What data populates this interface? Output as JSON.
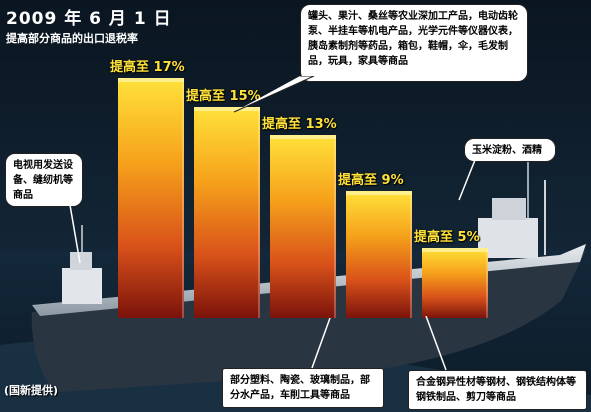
{
  "header": {
    "title": "2009 年 6 月 1 日",
    "subtitle": "提高部分商品的出口退税率"
  },
  "chart_data": {
    "type": "bar",
    "categories": [
      "提高至 17%",
      "提高至 15%",
      "提高至 13%",
      "提高至 9%",
      "提高至 5%"
    ],
    "values": [
      17,
      15,
      13,
      9,
      5
    ],
    "title": "",
    "xlabel": "",
    "ylabel": ""
  },
  "callouts": {
    "top": "罐头、果汁、桑丝等农业深加工产品，电动齿轮泵、半挂车等机电产品，光学元件等仪器仪表，胰岛素制剂等药品，箱包，鞋帽，伞，毛发制品，玩具，家具等商品",
    "left": "电视用发送设备、缝纫机等商品",
    "right": "玉米淀粉、酒精",
    "bottom_center": "部分塑料、陶瓷、玻璃制品，部分水产品，车削工具等商品",
    "bottom_right": "合金钢异性材等钢材、钢铁结构体等钢铁制品、剪刀等商品"
  },
  "footer": {
    "credit": "(国新提供)"
  }
}
